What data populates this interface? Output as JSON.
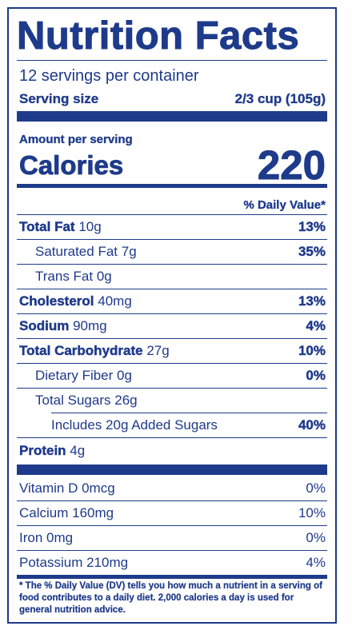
{
  "title": "Nutrition Facts",
  "servings": "12 servings per container",
  "serving_size": {
    "label": "Serving size",
    "value": "2/3 cup (105g)"
  },
  "amount_per_serving": "Amount per serving",
  "calories": {
    "label": "Calories",
    "value": "220"
  },
  "daily_value_header": "% Daily Value*",
  "nutrients": [
    {
      "name": "Total Fat",
      "amount": "10g",
      "dv": "13%"
    },
    {
      "name": "Saturated Fat",
      "amount": "7g",
      "dv": "35%"
    },
    {
      "name": "Trans Fat",
      "amount": "0g",
      "dv": ""
    },
    {
      "name": "Cholesterol",
      "amount": "40mg",
      "dv": "13%"
    },
    {
      "name": "Sodium",
      "amount": "90mg",
      "dv": "4%"
    },
    {
      "name": "Total Carbohydrate",
      "amount": "27g",
      "dv": "10%"
    },
    {
      "name": "Dietary Fiber",
      "amount": "0g",
      "dv": "0%"
    },
    {
      "name": "Total Sugars",
      "amount": "26g",
      "dv": ""
    },
    {
      "name": "Includes 20g Added Sugars",
      "amount": "",
      "dv": "40%"
    },
    {
      "name": "Protein",
      "amount": "4g",
      "dv": ""
    }
  ],
  "vitamins": [
    {
      "text": "Vitamin D 0mcg",
      "dv": "0%"
    },
    {
      "text": "Calcium 160mg",
      "dv": "10%"
    },
    {
      "text": "Iron 0mg",
      "dv": "0%"
    },
    {
      "text": "Potassium 210mg",
      "dv": "4%"
    }
  ],
  "footnote": "* The % Daily Value (DV) tells you how much a nutrient in a serving of food contributes to a daily diet. 2,000 calories a day is used for general nutrition advice.",
  "colors": {
    "ink": "#1e3a8a",
    "background": "#ffffff"
  }
}
